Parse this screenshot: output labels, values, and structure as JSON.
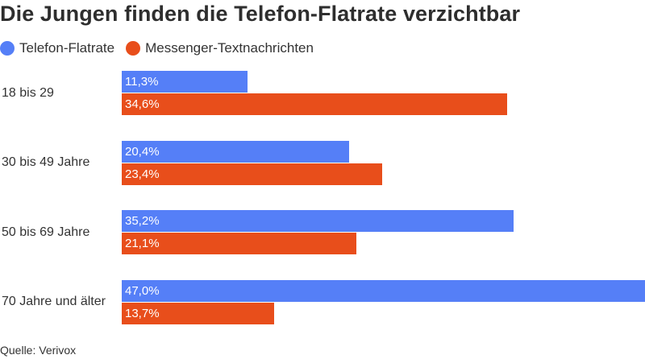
{
  "chart_data": {
    "type": "bar",
    "orientation": "horizontal",
    "title": "Die Jungen finden die Telefon-Flatrate verzichtbar",
    "categories": [
      "18 bis 29",
      "30 bis 49 Jahre",
      "50 bis 69 Jahre",
      "70 Jahre und älter"
    ],
    "series": [
      {
        "name": "Telefon-Flatrate",
        "color": "#557ff7",
        "values": [
          11.3,
          20.4,
          35.2,
          47.0
        ],
        "labels": [
          "11,3%",
          "20,4%",
          "35,2%",
          "47,0%"
        ]
      },
      {
        "name": "Messenger-Textnachrichten",
        "color": "#e84e1b",
        "values": [
          34.6,
          23.4,
          21.1,
          13.7
        ],
        "labels": [
          "34,6%",
          "23,4%",
          "21,1%",
          "13,7%"
        ]
      }
    ],
    "xlim": [
      0,
      47.0
    ],
    "legend": "top-left",
    "grid": false
  },
  "source": "Quelle: Verivox"
}
